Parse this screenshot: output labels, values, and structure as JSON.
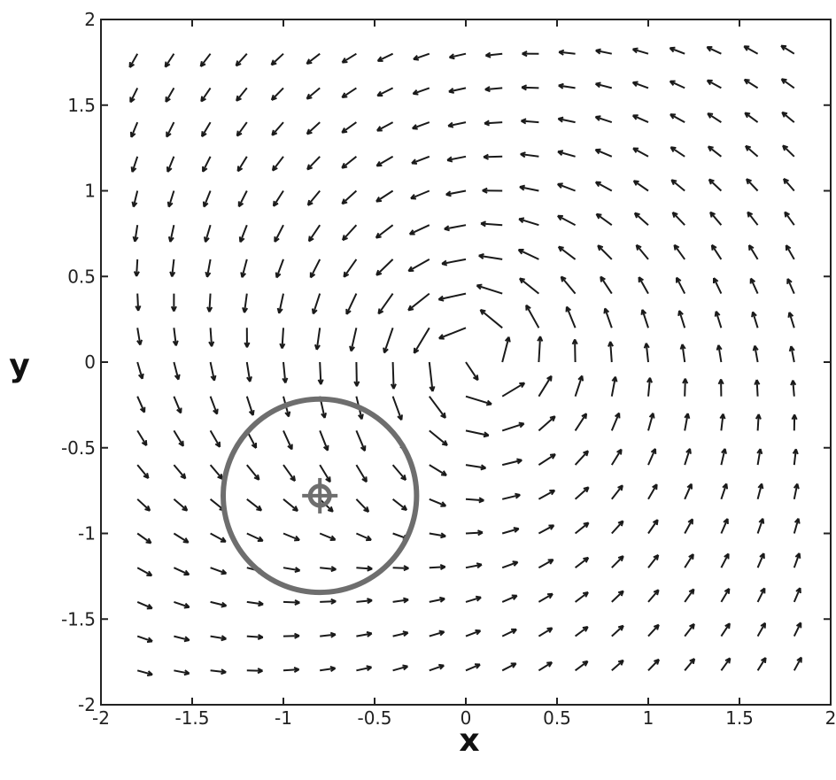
{
  "chart_data": {
    "type": "quiver",
    "xlabel": "x",
    "ylabel": "y",
    "xlim": [
      -2,
      2
    ],
    "ylim": [
      -2,
      2
    ],
    "x_ticks": [
      -2,
      -1.5,
      -1,
      -0.5,
      0,
      0.5,
      1,
      1.5,
      2
    ],
    "y_ticks": [
      -2,
      -1.5,
      -1,
      -0.5,
      0,
      0.5,
      1,
      1.5,
      2
    ],
    "x_tick_labels": [
      "-2",
      "-1.5",
      "-1",
      "-0.5",
      "0",
      "0.5",
      "1",
      "1.5",
      "2"
    ],
    "y_tick_labels": [
      "-2",
      "-1.5",
      "-1",
      "-0.5",
      "0",
      "0.5",
      "1",
      "1.5",
      "2"
    ],
    "grid": false,
    "vector_field": {
      "description_of_rule": "counter-clockwise rotation about a vortex centre plus a sink at the marked circle centre",
      "vortex_center": [
        0.05,
        0.05
      ],
      "sink_center": [
        -0.8,
        -0.78
      ],
      "grid_x": [
        -1.8,
        -1.6,
        -1.4,
        -1.2,
        -1.0,
        -0.8,
        -0.6,
        -0.4,
        -0.2,
        0.0,
        0.2,
        0.4,
        0.6,
        0.8,
        1.0,
        1.2,
        1.4,
        1.6,
        1.8
      ],
      "grid_y": [
        -1.8,
        -1.6,
        -1.4,
        -1.2,
        -1.0,
        -0.8,
        -0.6,
        -0.4,
        -0.2,
        0.0,
        0.2,
        0.4,
        0.6,
        0.8,
        1.0,
        1.2,
        1.4,
        1.6,
        1.8
      ]
    },
    "target_circle": {
      "center": [
        -0.8,
        -0.78
      ],
      "radius": 0.53,
      "color": "#6e6e6e"
    },
    "target_marker": {
      "center": [
        -0.8,
        -0.78
      ],
      "color": "#6e6e6e"
    },
    "arrow_color": "#1a1a1a"
  }
}
